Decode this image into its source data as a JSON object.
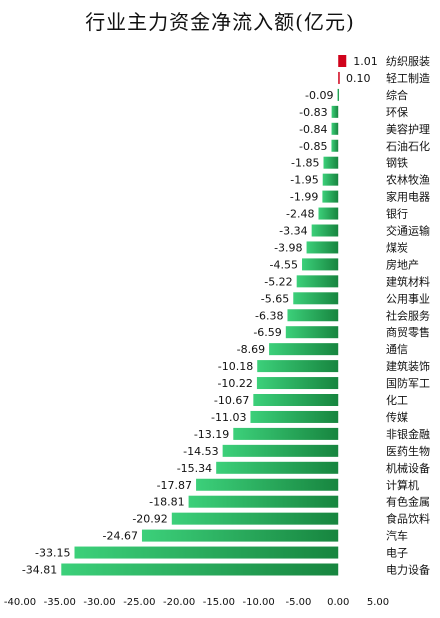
{
  "chart_data": {
    "type": "bar",
    "orientation": "horizontal",
    "title": "行业主力资金净流入额(亿元)",
    "xlabel": "",
    "ylabel": "",
    "xlim": [
      -40,
      5
    ],
    "xticks": [
      "-40.00",
      "-35.00",
      "-30.00",
      "-25.00",
      "-20.00",
      "-15.00",
      "-10.00",
      "-5.00",
      "0.00",
      "5.00"
    ],
    "categories": [
      "纺织服装",
      "轻工制造",
      "综合",
      "环保",
      "美容护理",
      "石油石化",
      "钢铁",
      "农林牧渔",
      "家用电器",
      "银行",
      "交通运输",
      "煤炭",
      "房地产",
      "建筑材料",
      "公用事业",
      "社会服务",
      "商贸零售",
      "通信",
      "建筑装饰",
      "国防军工",
      "化工",
      "传媒",
      "非银金融",
      "医药生物",
      "机械设备",
      "计算机",
      "有色金属",
      "食品饮料",
      "汽车",
      "电子",
      "电力设备"
    ],
    "values": [
      1.01,
      0.1,
      -0.09,
      -0.83,
      -0.84,
      -0.85,
      -1.85,
      -1.95,
      -1.99,
      -2.48,
      -3.34,
      -3.98,
      -4.55,
      -5.22,
      -5.65,
      -6.38,
      -6.59,
      -8.69,
      -10.18,
      -10.22,
      -10.67,
      -11.03,
      -13.19,
      -14.53,
      -15.34,
      -17.87,
      -18.81,
      -20.92,
      -24.67,
      -33.15,
      -34.81
    ],
    "value_labels": [
      "1.01",
      "0.10",
      "-0.09",
      "-0.83",
      "-0.84",
      "-0.85",
      "-1.85",
      "-1.95",
      "-1.99",
      "-2.48",
      "-3.34",
      "-3.98",
      "-4.55",
      "-5.22",
      "-5.65",
      "-6.38",
      "-6.59",
      "-8.69",
      "-10.18",
      "-10.22",
      "-10.67",
      "-11.03",
      "-13.19",
      "-14.53",
      "-15.34",
      "-17.87",
      "-18.81",
      "-20.92",
      "-24.67",
      "-33.15",
      "-34.81"
    ],
    "grid": false,
    "legend": "none",
    "colors": {
      "positive": "#d0021b",
      "negative_light": "#3cd07a",
      "negative_dark": "#17853f",
      "text": "#111111"
    }
  }
}
